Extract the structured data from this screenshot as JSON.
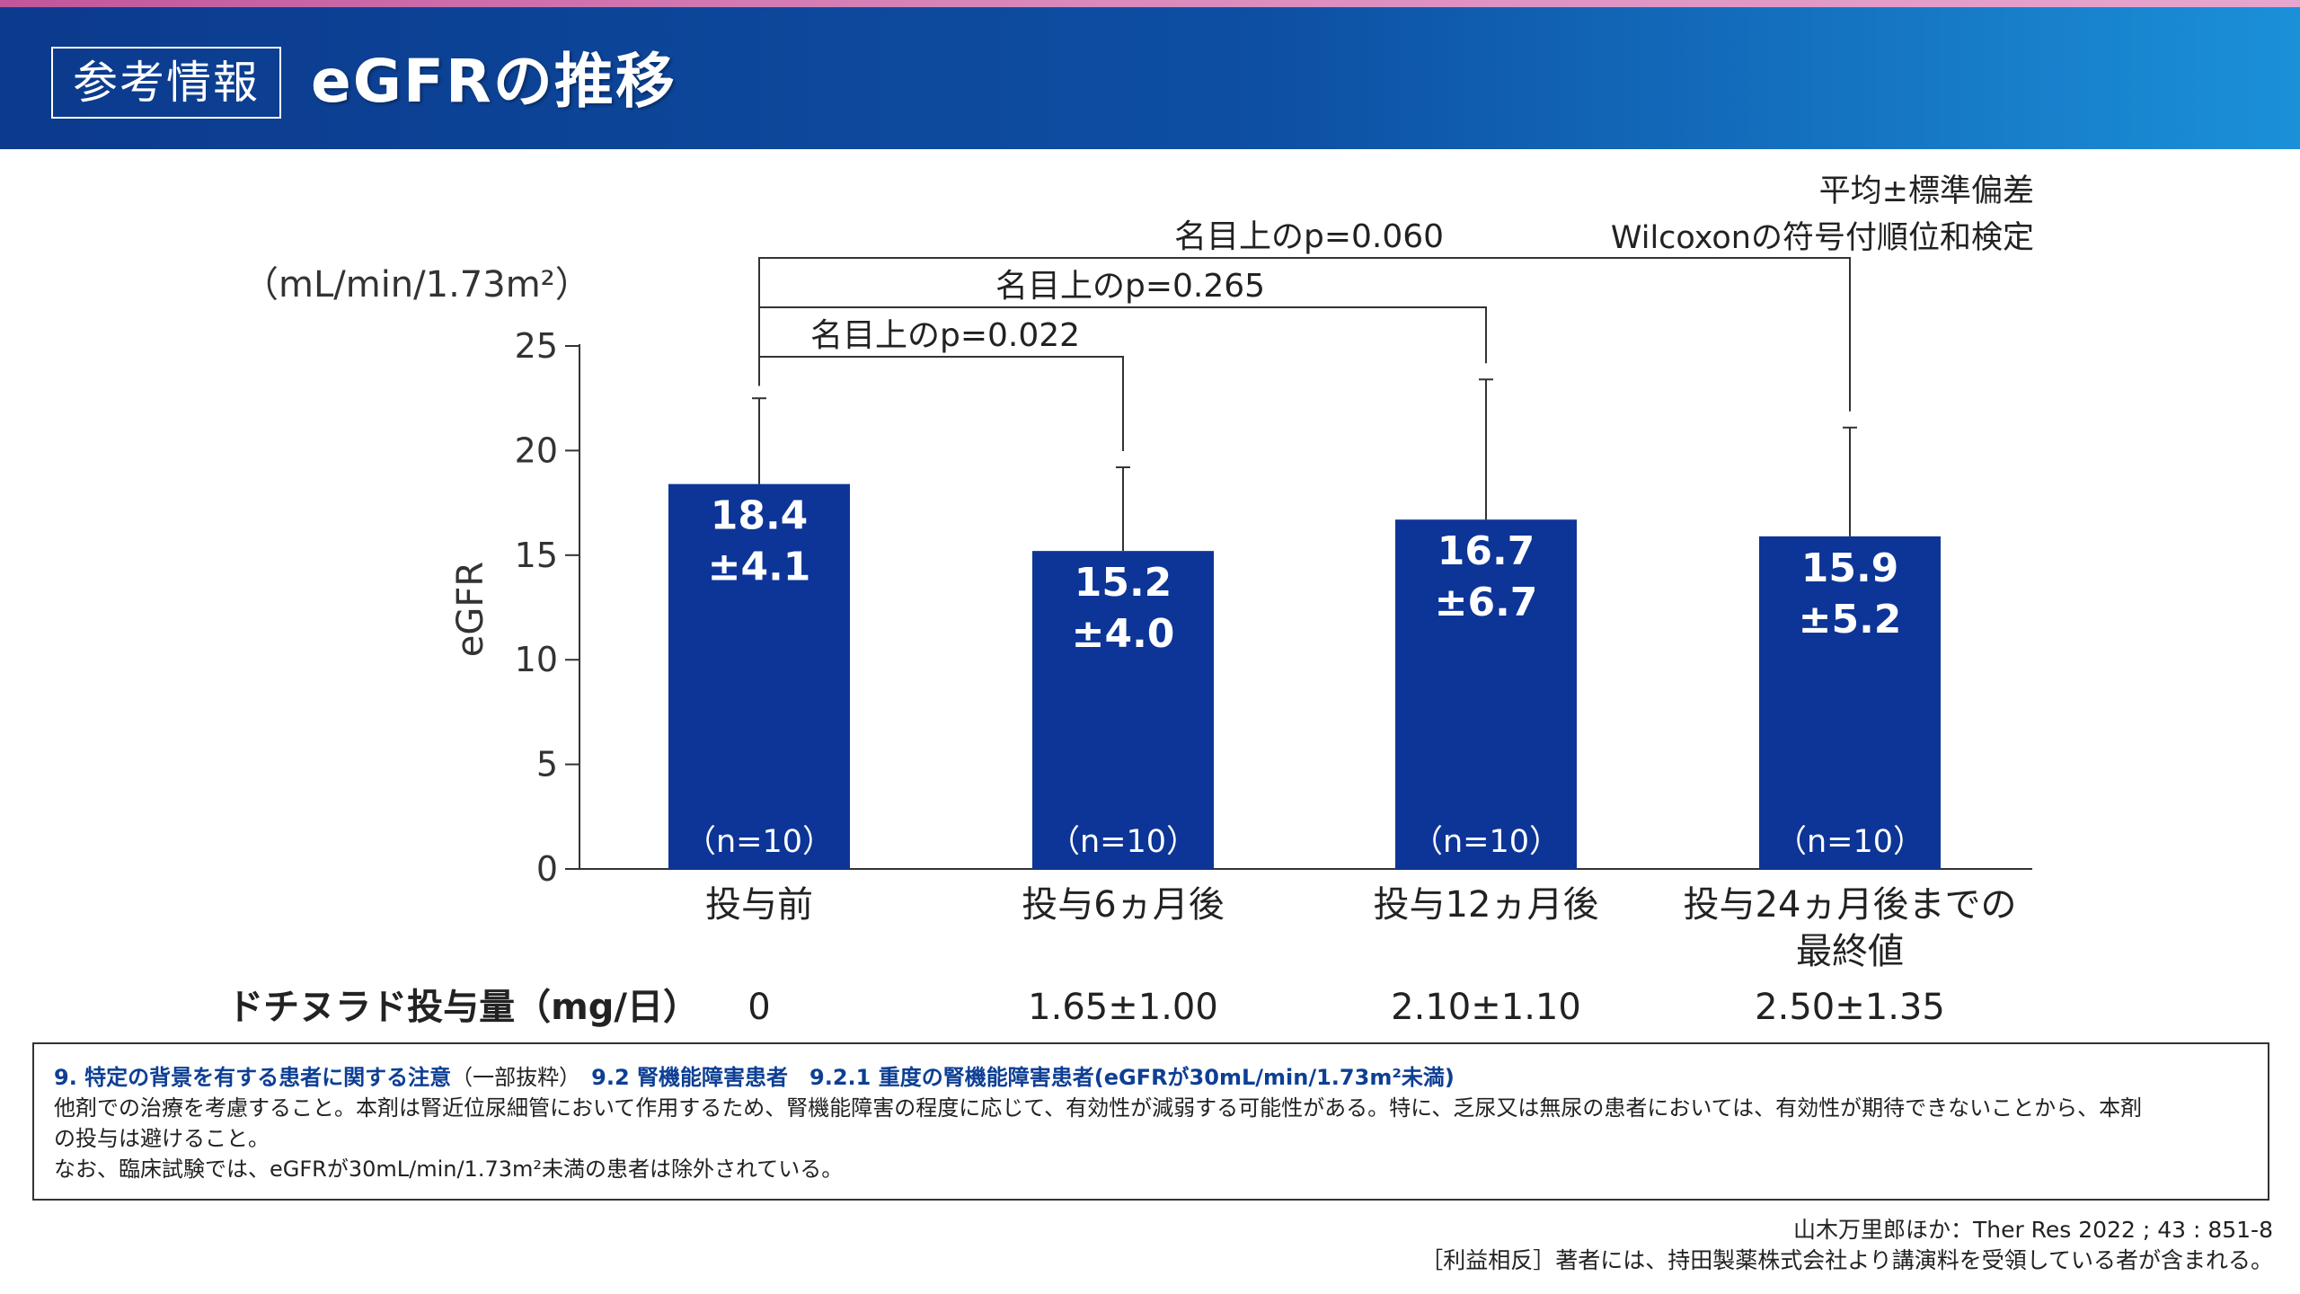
{
  "header": {
    "badge": "参考情報",
    "title": "eGFRの推移"
  },
  "notes": {
    "stat_line1": "平均±標準偏差",
    "stat_line2": "Wilcoxonの符号付順位和検定"
  },
  "chart_data": {
    "type": "bar",
    "unit_label": "（mL/min/1.73m²）",
    "ylabel": "eGFR",
    "xlabel": "",
    "ylim": [
      0,
      25
    ],
    "yticks": [
      0,
      5,
      10,
      15,
      20,
      25
    ],
    "grid": false,
    "categories": [
      {
        "lines": [
          "投与前"
        ]
      },
      {
        "lines": [
          "投与6ヵ月後"
        ]
      },
      {
        "lines": [
          "投与12ヵ月後"
        ]
      },
      {
        "lines": [
          "投与24ヵ月後までの",
          "最終値"
        ]
      }
    ],
    "values": [
      18.4,
      15.2,
      16.7,
      15.9
    ],
    "sd": [
      4.1,
      4.0,
      6.7,
      5.2
    ],
    "value_labels": [
      "18.4",
      "15.2",
      "16.7",
      "15.9"
    ],
    "sd_labels": [
      "±4.1",
      "±4.0",
      "±6.7",
      "±5.2"
    ],
    "n_labels": [
      "（n=10）",
      "（n=10）",
      "（n=10）",
      "（n=10）"
    ],
    "bar_color": "#0d3597",
    "comparisons": [
      {
        "from": 0,
        "to": 1,
        "label": "名目上のp=0.022"
      },
      {
        "from": 0,
        "to": 2,
        "label": "名目上のp=0.265"
      },
      {
        "from": 0,
        "to": 3,
        "label": "名目上のp=0.060"
      }
    ],
    "dose": {
      "label": "ドチヌラド投与量（mg/日）",
      "values": [
        "0",
        "1.65±1.00",
        "2.10±1.10",
        "2.50±1.35"
      ]
    }
  },
  "infobox": {
    "heading_part1": "9. 特定の背景を有する患者に関する注意",
    "heading_part2": "（一部抜粋）",
    "heading_part3": "　9.2 腎機能障害患者　9.2.1 重度の腎機能障害患者(eGFRが30mL/min/1.73m²未満)",
    "line1": "他剤での治療を考慮すること。本剤は腎近位尿細管において作用するため、腎機能障害の程度に応じて、有効性が減弱する可能性がある。特に、乏尿又は無尿の患者においては、有効性が期待できないことから、本剤",
    "line2": "の投与は避けること。",
    "line3": "なお、臨床試験では、eGFRが30mL/min/1.73m²未満の患者は除外されている。"
  },
  "footer": {
    "citation": "山木万里郎ほか：Ther Res 2022 ; 43 : 851-8",
    "conflict": "［利益相反］著者には、持田製薬株式会社より講演料を受領している者が含まれる。"
  }
}
